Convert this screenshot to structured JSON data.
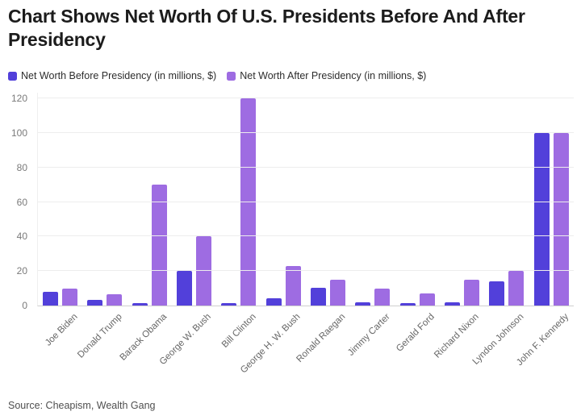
{
  "title": "Chart Shows Net Worth Of U.S. Presidents Before And After Presidency",
  "source": "Source: Cheapism, Wealth Gang",
  "colors": {
    "before_bar": "#5240da",
    "after_bar": "#9e6ce2",
    "gridline": "#ededed",
    "axis_line": "#cfcfcf",
    "title_text": "#1c1c1c",
    "tick_text": "#7a7a7a"
  },
  "chart_data": {
    "type": "bar",
    "title": "Chart Shows Net Worth Of U.S. Presidents Before And After Presidency",
    "categories": [
      "Joe Biden",
      "Donald Trump",
      "Barack Obama",
      "George W. Bush",
      "Bill Clinton",
      "George H. W. Bush",
      "Ronald Raegan",
      "Jimmy Carter",
      "Gerald Ford",
      "Richard Nixon",
      "Lyndon Johnson",
      "John F. Kennedy"
    ],
    "series": [
      {
        "name": "Net Worth Before Presidency (in millions, $)",
        "color": "#5240da",
        "values": [
          8,
          3.5,
          1.3,
          20,
          1.3,
          4,
          10.5,
          2,
          1.3,
          2,
          14,
          100
        ]
      },
      {
        "name": "Net Worth After Presidency (in millions, $)",
        "color": "#9e6ce2",
        "values": [
          10,
          6.5,
          70,
          40,
          120,
          23,
          15,
          10,
          7,
          15,
          20,
          100
        ]
      }
    ],
    "xlabel": "",
    "ylabel": "",
    "ylim": [
      0,
      120
    ],
    "yticks": [
      0,
      20,
      40,
      60,
      80,
      100,
      120
    ],
    "grid": true,
    "legend_position": "top-left",
    "x_tick_rotation": 45
  }
}
